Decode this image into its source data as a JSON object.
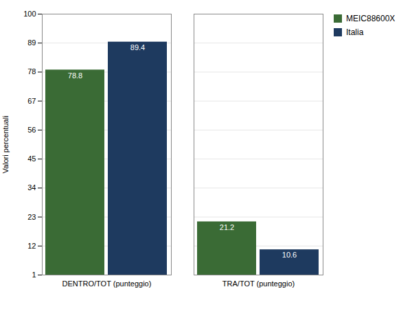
{
  "chart_data": {
    "type": "bar",
    "categories": [
      "DENTRO/TOT (punteggio)",
      "TRA/TOT (punteggio)"
    ],
    "series": [
      {
        "name": "MEIC88600X",
        "color": "#3a6b35",
        "values": [
          78.8,
          21.2
        ]
      },
      {
        "name": "Italia",
        "color": "#1e3a5f",
        "values": [
          89.4,
          10.6
        ]
      }
    ],
    "ylabel": "Valori percentuali",
    "ylim": [
      1,
      100
    ],
    "yticks": [
      1,
      12,
      23,
      34,
      45,
      56,
      67,
      78,
      89,
      100
    ],
    "grid": true,
    "legend": "right",
    "data_labels": true
  }
}
